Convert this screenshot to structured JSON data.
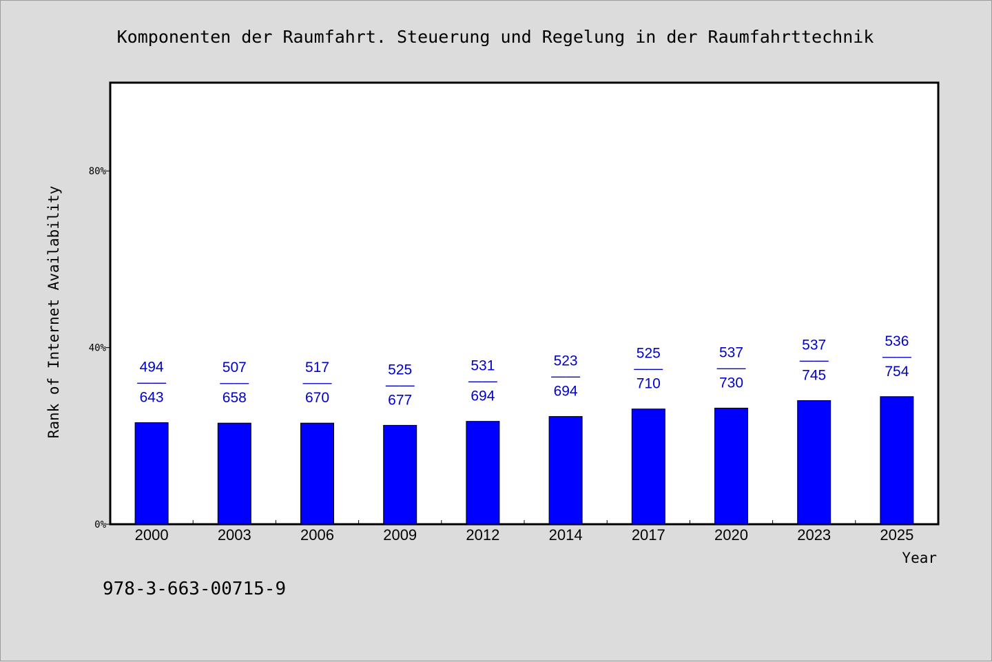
{
  "chart_data": {
    "type": "bar",
    "title": "Komponenten der Raumfahrt. Steuerung und Regelung in der Raumfahrttechnik",
    "xlabel": "Year",
    "ylabel": "Rank of Internet Availability",
    "ylim": [
      0,
      100
    ],
    "yticks": [
      {
        "value": 0,
        "label": "0%"
      },
      {
        "value": 40,
        "label": "40%"
      },
      {
        "value": 80,
        "label": "80%"
      }
    ],
    "categories": [
      "2000",
      "2003",
      "2006",
      "2009",
      "2012",
      "2014",
      "2017",
      "2020",
      "2023",
      "2025"
    ],
    "series": [
      {
        "values": [
          23.0,
          22.9,
          22.9,
          22.4,
          23.3,
          24.4,
          26.1,
          26.3,
          28.0,
          28.9
        ],
        "color": "#0000ff"
      }
    ],
    "data_labels": [
      {
        "top": "494",
        "sep": "——",
        "bottom": "643"
      },
      {
        "top": "507",
        "sep": "——",
        "bottom": "658"
      },
      {
        "top": "517",
        "sep": "——",
        "bottom": "670"
      },
      {
        "top": "525",
        "sep": "——",
        "bottom": "677"
      },
      {
        "top": "531",
        "sep": "——",
        "bottom": "694"
      },
      {
        "top": "523",
        "sep": "——",
        "bottom": "694"
      },
      {
        "top": "525",
        "sep": "——",
        "bottom": "710"
      },
      {
        "top": "537",
        "sep": "——",
        "bottom": "730"
      },
      {
        "top": "537",
        "sep": "——",
        "bottom": "745"
      },
      {
        "top": "536",
        "sep": "——",
        "bottom": "754"
      }
    ],
    "grid": false,
    "legend": "none"
  },
  "footnote": "978-3-663-00715-9",
  "colors": {
    "background": "#dcdcdc",
    "plot_area": "#ffffff",
    "bar": "#0000ff",
    "data_label": "#0000cc"
  }
}
